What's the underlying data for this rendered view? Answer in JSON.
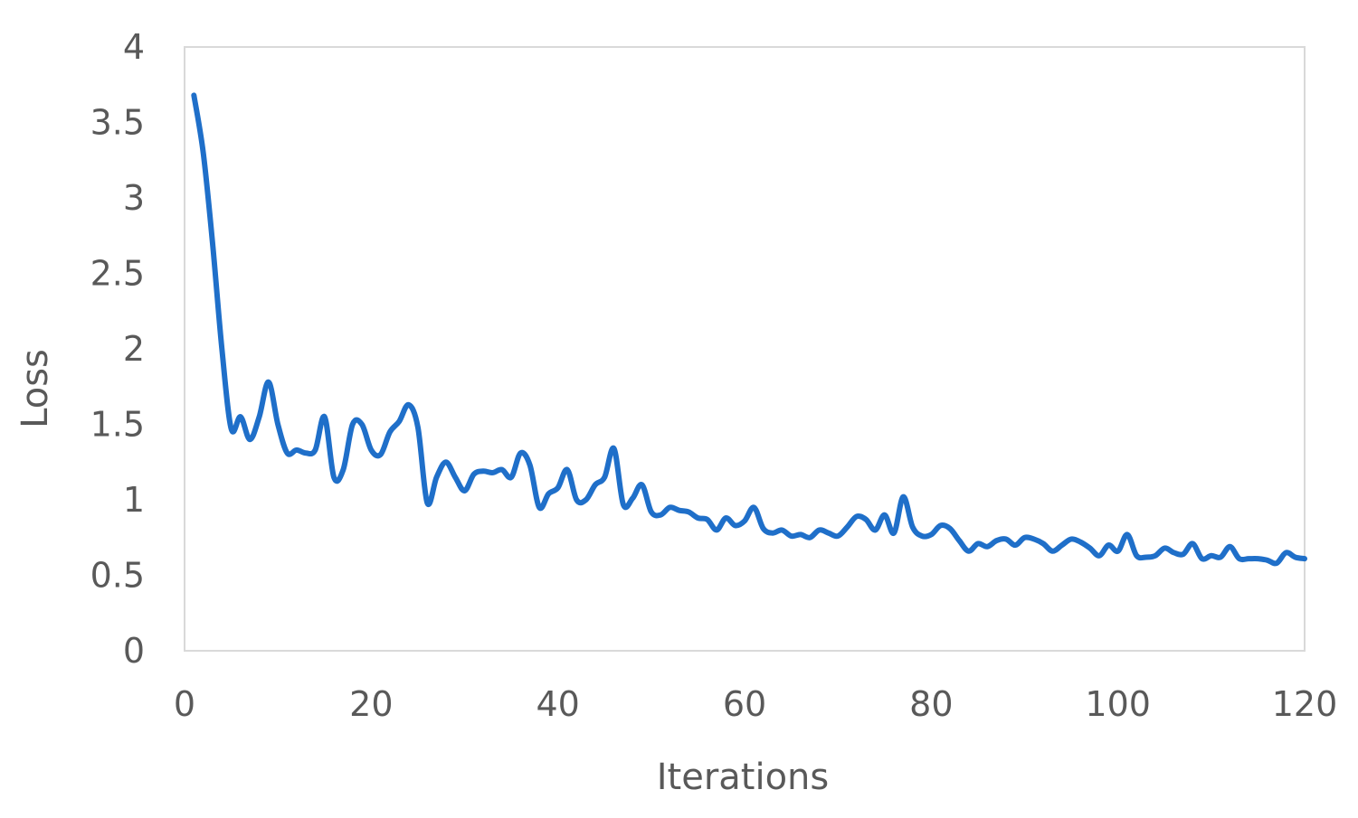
{
  "chart_data": {
    "type": "line",
    "title": "",
    "xlabel": "Iterations",
    "ylabel": "Loss",
    "xlim": [
      0,
      120
    ],
    "ylim": [
      0,
      4
    ],
    "xticks": [
      0,
      20,
      40,
      60,
      80,
      100,
      120
    ],
    "xtick_labels": [
      "0",
      "20",
      "40",
      "60",
      "80",
      "100",
      "120"
    ],
    "yticks": [
      0,
      0.5,
      1,
      1.5,
      2,
      2.5,
      3,
      3.5,
      4
    ],
    "ytick_labels": [
      "0",
      "0.5",
      "1",
      "1.5",
      "2",
      "2.5",
      "3",
      "3.5",
      "4"
    ],
    "grid": false,
    "legend": "none",
    "series": [
      {
        "color": "#1F6FC9",
        "x": [
          1,
          2,
          3,
          4,
          5,
          6,
          7,
          8,
          9,
          10,
          11,
          12,
          13,
          14,
          15,
          16,
          17,
          18,
          19,
          20,
          21,
          22,
          23,
          24,
          25,
          26,
          27,
          28,
          29,
          30,
          31,
          32,
          33,
          34,
          35,
          36,
          37,
          38,
          39,
          40,
          41,
          42,
          43,
          44,
          45,
          46,
          47,
          48,
          49,
          50,
          51,
          52,
          53,
          54,
          55,
          56,
          57,
          58,
          59,
          60,
          61,
          62,
          63,
          64,
          65,
          66,
          67,
          68,
          69,
          70,
          71,
          72,
          73,
          74,
          75,
          76,
          77,
          78,
          79,
          80,
          81,
          82,
          83,
          84,
          85,
          86,
          87,
          88,
          89,
          90,
          91,
          92,
          93,
          94,
          95,
          96,
          97,
          98,
          99,
          100,
          101,
          102,
          103,
          104,
          105,
          106,
          107,
          108,
          109,
          110,
          111,
          112,
          113,
          114,
          115,
          116,
          117,
          118,
          119,
          120
        ],
        "y": [
          3.68,
          3.3,
          2.7,
          2.0,
          1.47,
          1.55,
          1.4,
          1.55,
          1.78,
          1.5,
          1.31,
          1.33,
          1.31,
          1.33,
          1.55,
          1.15,
          1.2,
          1.5,
          1.5,
          1.33,
          1.3,
          1.45,
          1.52,
          1.63,
          1.48,
          0.98,
          1.15,
          1.25,
          1.15,
          1.06,
          1.17,
          1.19,
          1.18,
          1.2,
          1.15,
          1.31,
          1.23,
          0.95,
          1.04,
          1.08,
          1.2,
          1.0,
          1.0,
          1.1,
          1.15,
          1.34,
          0.97,
          1.01,
          1.1,
          0.92,
          0.9,
          0.95,
          0.93,
          0.92,
          0.88,
          0.87,
          0.8,
          0.88,
          0.83,
          0.86,
          0.95,
          0.81,
          0.78,
          0.8,
          0.76,
          0.77,
          0.75,
          0.8,
          0.78,
          0.76,
          0.82,
          0.89,
          0.87,
          0.8,
          0.9,
          0.78,
          1.02,
          0.82,
          0.76,
          0.77,
          0.83,
          0.81,
          0.73,
          0.66,
          0.71,
          0.69,
          0.73,
          0.74,
          0.7,
          0.75,
          0.74,
          0.71,
          0.66,
          0.7,
          0.74,
          0.72,
          0.68,
          0.63,
          0.7,
          0.66,
          0.77,
          0.63,
          0.62,
          0.63,
          0.68,
          0.65,
          0.64,
          0.71,
          0.61,
          0.63,
          0.62,
          0.69,
          0.61,
          0.61,
          0.61,
          0.6,
          0.58,
          0.65,
          0.62,
          0.61
        ]
      }
    ]
  }
}
